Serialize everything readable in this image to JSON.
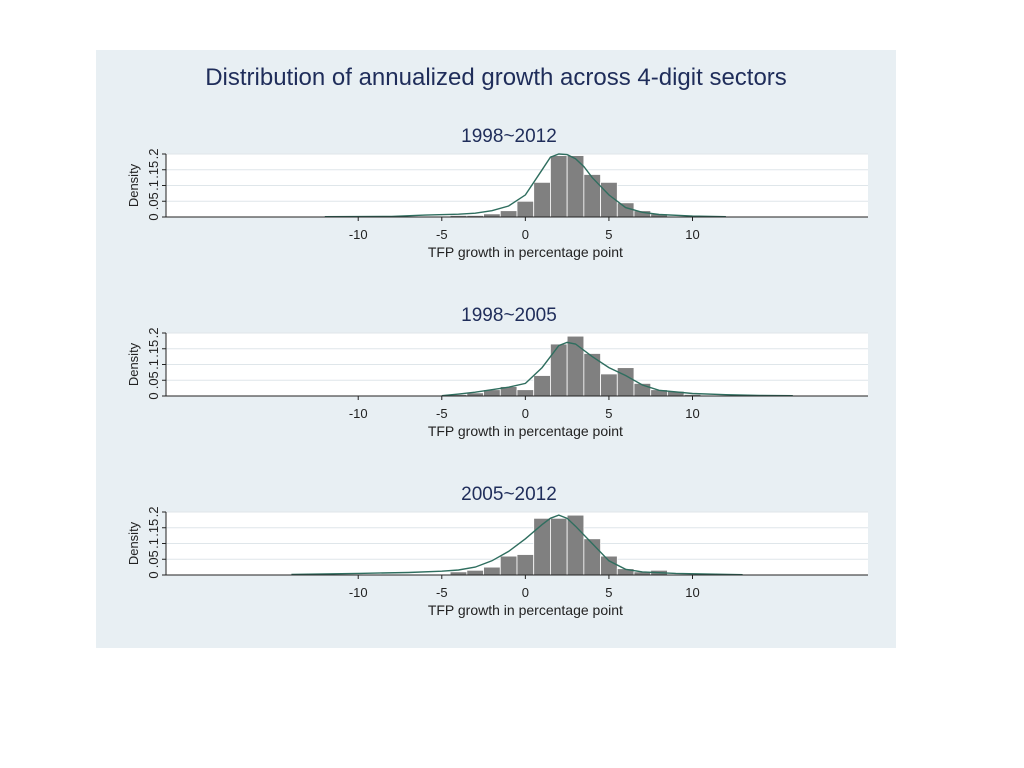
{
  "figure_title": "Distribution of annualized growth across 4-digit sectors",
  "colors": {
    "background": "#e8eff3",
    "bar": "#808080",
    "bar_edge": "#ffffff",
    "kde": "#2f6e5f",
    "grid": "#dfe6ea"
  },
  "chart_data": [
    {
      "type": "bar",
      "title": "1998~2012",
      "xlabel": "TFP growth in percentage point",
      "ylabel": "Density",
      "y_tick_labels": [
        "0",
        ".05",
        ".1",
        ".15",
        ".2"
      ],
      "x_ticks": [
        -10,
        -5,
        0,
        5,
        10
      ],
      "xlim": [
        -21.5,
        20.5
      ],
      "ylim": [
        0,
        0.2
      ],
      "bin_width": 1,
      "bins": [
        {
          "x": -4,
          "y": 0.005
        },
        {
          "x": -3,
          "y": 0.005
        },
        {
          "x": -2,
          "y": 0.01
        },
        {
          "x": -1,
          "y": 0.02
        },
        {
          "x": 0,
          "y": 0.05
        },
        {
          "x": 1,
          "y": 0.11
        },
        {
          "x": 2,
          "y": 0.195
        },
        {
          "x": 3,
          "y": 0.195
        },
        {
          "x": 4,
          "y": 0.135
        },
        {
          "x": 5,
          "y": 0.11
        },
        {
          "x": 6,
          "y": 0.045
        },
        {
          "x": 7,
          "y": 0.02
        },
        {
          "x": 8,
          "y": 0.01
        }
      ],
      "kde": [
        [
          -12,
          0.001
        ],
        [
          -8,
          0.002
        ],
        [
          -6,
          0.006
        ],
        [
          -4,
          0.009
        ],
        [
          -3,
          0.012
        ],
        [
          -2,
          0.02
        ],
        [
          -1,
          0.035
        ],
        [
          0,
          0.07
        ],
        [
          1,
          0.15
        ],
        [
          1.5,
          0.19
        ],
        [
          2,
          0.2
        ],
        [
          2.5,
          0.198
        ],
        [
          3,
          0.185
        ],
        [
          3.5,
          0.16
        ],
        [
          4,
          0.125
        ],
        [
          5,
          0.07
        ],
        [
          6,
          0.03
        ],
        [
          7,
          0.015
        ],
        [
          8,
          0.008
        ],
        [
          10,
          0.003
        ],
        [
          12,
          0.001
        ]
      ],
      "legend": "none"
    },
    {
      "type": "bar",
      "title": "1998~2005",
      "xlabel": "TFP growth in percentage point",
      "ylabel": "Density",
      "y_tick_labels": [
        "0",
        ".05",
        ".1",
        ".15",
        ".2"
      ],
      "x_ticks": [
        -10,
        -5,
        0,
        5,
        10
      ],
      "xlim": [
        -21.5,
        20.5
      ],
      "ylim": [
        0,
        0.2
      ],
      "bin_width": 1,
      "bins": [
        {
          "x": -4,
          "y": 0.005
        },
        {
          "x": -3,
          "y": 0.01
        },
        {
          "x": -2,
          "y": 0.02
        },
        {
          "x": -1,
          "y": 0.03
        },
        {
          "x": 0,
          "y": 0.02
        },
        {
          "x": 1,
          "y": 0.065
        },
        {
          "x": 2,
          "y": 0.165
        },
        {
          "x": 3,
          "y": 0.19
        },
        {
          "x": 4,
          "y": 0.135
        },
        {
          "x": 5,
          "y": 0.07
        },
        {
          "x": 6,
          "y": 0.09
        },
        {
          "x": 7,
          "y": 0.04
        },
        {
          "x": 8,
          "y": 0.02
        },
        {
          "x": 9,
          "y": 0.015
        },
        {
          "x": 10,
          "y": 0.005
        }
      ],
      "kde": [
        [
          -5,
          0.001
        ],
        [
          -4,
          0.006
        ],
        [
          -3,
          0.012
        ],
        [
          -2,
          0.02
        ],
        [
          -1,
          0.028
        ],
        [
          0,
          0.04
        ],
        [
          1,
          0.09
        ],
        [
          2,
          0.16
        ],
        [
          2.5,
          0.17
        ],
        [
          3,
          0.165
        ],
        [
          4,
          0.125
        ],
        [
          5,
          0.09
        ],
        [
          6,
          0.065
        ],
        [
          7,
          0.035
        ],
        [
          8,
          0.018
        ],
        [
          10,
          0.008
        ],
        [
          12,
          0.004
        ],
        [
          14,
          0.002
        ],
        [
          16,
          0.001
        ]
      ],
      "legend": "none"
    },
    {
      "type": "bar",
      "title": "2005~2012",
      "xlabel": "TFP growth in percentage point",
      "ylabel": "Density",
      "y_tick_labels": [
        "0",
        ".05",
        ".1",
        ".15",
        ".2"
      ],
      "x_ticks": [
        -10,
        -5,
        0,
        5,
        10
      ],
      "xlim": [
        -21.5,
        20.5
      ],
      "ylim": [
        0,
        0.2
      ],
      "bin_width": 1,
      "bins": [
        {
          "x": -20,
          "y": 0.002
        },
        {
          "x": -4,
          "y": 0.01
        },
        {
          "x": -3,
          "y": 0.015
        },
        {
          "x": -2,
          "y": 0.025
        },
        {
          "x": -1,
          "y": 0.06
        },
        {
          "x": 0,
          "y": 0.065
        },
        {
          "x": 1,
          "y": 0.18
        },
        {
          "x": 2,
          "y": 0.18
        },
        {
          "x": 3,
          "y": 0.19
        },
        {
          "x": 4,
          "y": 0.115
        },
        {
          "x": 5,
          "y": 0.06
        },
        {
          "x": 6,
          "y": 0.02
        },
        {
          "x": 7,
          "y": 0.01
        },
        {
          "x": 8,
          "y": 0.015
        }
      ],
      "kde": [
        [
          -14,
          0.002
        ],
        [
          -10,
          0.005
        ],
        [
          -7,
          0.008
        ],
        [
          -5,
          0.012
        ],
        [
          -4,
          0.016
        ],
        [
          -3,
          0.025
        ],
        [
          -2,
          0.045
        ],
        [
          -1,
          0.075
        ],
        [
          0,
          0.115
        ],
        [
          1,
          0.16
        ],
        [
          1.5,
          0.18
        ],
        [
          2,
          0.19
        ],
        [
          2.5,
          0.18
        ],
        [
          3,
          0.155
        ],
        [
          4,
          0.1
        ],
        [
          5,
          0.045
        ],
        [
          6,
          0.018
        ],
        [
          7,
          0.01
        ],
        [
          9,
          0.005
        ],
        [
          11,
          0.003
        ],
        [
          13,
          0.001
        ]
      ],
      "legend": "none"
    }
  ]
}
